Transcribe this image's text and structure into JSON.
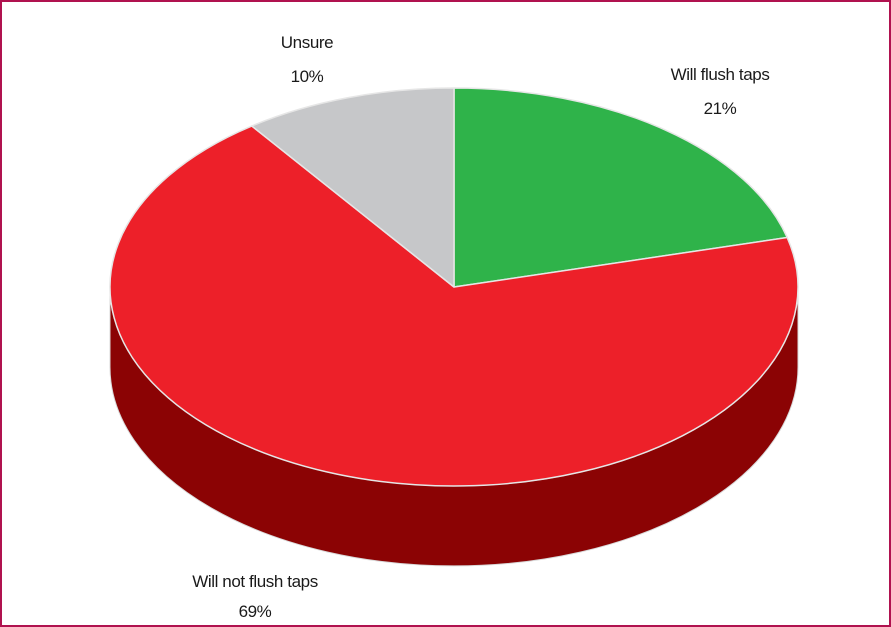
{
  "chart_data": {
    "type": "pie",
    "style": "3d",
    "title": "",
    "slices": [
      {
        "label": "Will flush taps",
        "value": 21,
        "display": "21%",
        "color": "#2fb34a",
        "side_color": "#1e7a30"
      },
      {
        "label": "Will not flush taps",
        "value": 69,
        "display": "69%",
        "color": "#ed2029",
        "side_color": "#8b0304"
      },
      {
        "label": "Unsure",
        "value": 10,
        "display": "10%",
        "color": "#c6c7c9",
        "side_color": "#8e8f91"
      }
    ],
    "start": "12 o'clock",
    "direction": "clockwise",
    "legend": "none",
    "labels": "outside"
  },
  "frame": {
    "border_color": "#b0124f"
  }
}
